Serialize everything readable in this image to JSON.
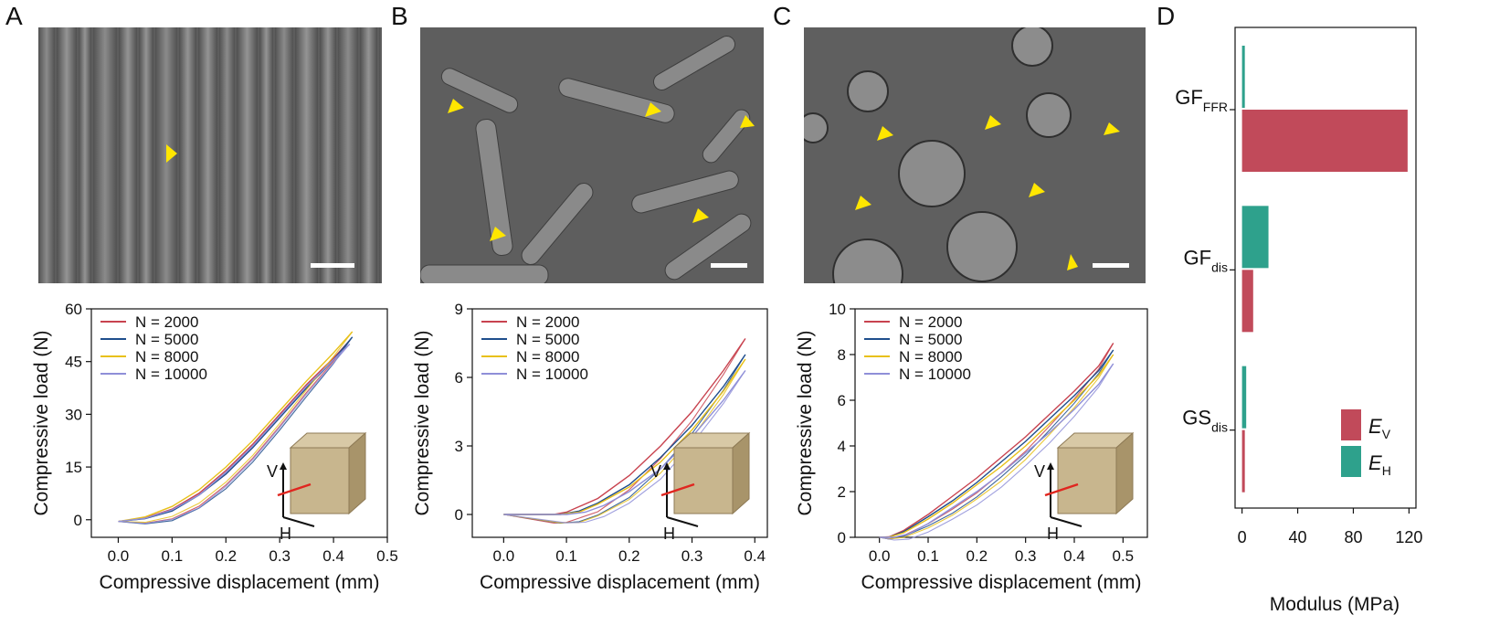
{
  "panels": {
    "a": {
      "letter": "A"
    },
    "b": {
      "letter": "B"
    },
    "c": {
      "letter": "C"
    },
    "d": {
      "letter": "D"
    }
  },
  "inset_labels": {
    "v": "V",
    "h": "H"
  },
  "colors": {
    "n2000": "#c8434f",
    "n5000": "#1f4e8c",
    "n8000": "#e8c11a",
    "n10000": "#8f8fd8",
    "ev": "#c14a5a",
    "eh": "#2ea18c",
    "arrowhead": "#ffe600",
    "inset_arrow": "#e0261f"
  },
  "chart_data": [
    {
      "panel": "A",
      "type": "line",
      "xlabel": "Compressive displacement (mm)",
      "ylabel": "Compressive load (N)",
      "xlim": [
        -0.05,
        0.5
      ],
      "ylim": [
        -5,
        60
      ],
      "xticks": [
        "0.0",
        "0.1",
        "0.2",
        "0.3",
        "0.4",
        "0.5"
      ],
      "yticks": [
        "0",
        "15",
        "30",
        "45",
        "60"
      ],
      "legend": "top-left",
      "grid": false,
      "series": [
        {
          "name": "N = 2000",
          "color": "#c8434f",
          "x": [
            0,
            0.05,
            0.1,
            0.15,
            0.2,
            0.25,
            0.3,
            0.35,
            0.4,
            0.43
          ],
          "y": [
            -0.5,
            0.5,
            3,
            7.5,
            14,
            21.5,
            30,
            38.5,
            46,
            51
          ]
        },
        {
          "name": "N = 5000",
          "color": "#1f4e8c",
          "x": [
            0,
            0.05,
            0.1,
            0.15,
            0.2,
            0.25,
            0.3,
            0.35,
            0.4,
            0.435
          ],
          "y": [
            -0.5,
            0.3,
            2.5,
            7,
            13,
            20.5,
            29,
            37.5,
            45.5,
            52
          ]
        },
        {
          "name": "N = 8000",
          "color": "#e8c11a",
          "x": [
            0,
            0.05,
            0.1,
            0.15,
            0.2,
            0.25,
            0.3,
            0.35,
            0.4,
            0.435
          ],
          "y": [
            -0.5,
            0.8,
            3.8,
            8.5,
            15,
            22.5,
            31,
            39.5,
            47.5,
            53.5
          ]
        },
        {
          "name": "N = 10000",
          "color": "#8f8fd8",
          "x": [
            0,
            0.05,
            0.1,
            0.15,
            0.2,
            0.25,
            0.3,
            0.35,
            0.4,
            0.43
          ],
          "y": [
            -0.5,
            0.4,
            2.8,
            7,
            13.5,
            21,
            29.5,
            38,
            45.5,
            50
          ]
        }
      ]
    },
    {
      "panel": "B",
      "type": "line",
      "xlabel": "Compressive displacement (mm)",
      "ylabel": "Compressive load (N)",
      "xlim": [
        -0.05,
        0.42
      ],
      "ylim": [
        -1,
        9
      ],
      "xticks": [
        "0.0",
        "0.1",
        "0.2",
        "0.3",
        "0.4"
      ],
      "yticks": [
        "0",
        "3",
        "6",
        "9"
      ],
      "legend": "top-left",
      "grid": false,
      "series": [
        {
          "name": "N = 2000",
          "color": "#c8434f",
          "x": [
            0,
            0.08,
            0.1,
            0.15,
            0.2,
            0.25,
            0.3,
            0.35,
            0.385
          ],
          "y": [
            0,
            0,
            0.1,
            0.7,
            1.7,
            3.0,
            4.5,
            6.3,
            7.7
          ]
        },
        {
          "name": "N = 5000",
          "color": "#1f4e8c",
          "x": [
            0,
            0.09,
            0.12,
            0.15,
            0.2,
            0.25,
            0.3,
            0.35,
            0.385
          ],
          "y": [
            0,
            0,
            0.15,
            0.5,
            1.3,
            2.5,
            3.9,
            5.6,
            7.0
          ]
        },
        {
          "name": "N = 8000",
          "color": "#e8c11a",
          "x": [
            0,
            0.09,
            0.12,
            0.15,
            0.2,
            0.25,
            0.3,
            0.35,
            0.385
          ],
          "y": [
            0,
            0,
            0.1,
            0.45,
            1.2,
            2.3,
            3.7,
            5.4,
            6.8
          ]
        },
        {
          "name": "N = 10000",
          "color": "#8f8fd8",
          "x": [
            0,
            0.1,
            0.13,
            0.16,
            0.2,
            0.25,
            0.3,
            0.35,
            0.385
          ],
          "y": [
            0,
            0,
            0.1,
            0.4,
            1.0,
            2.0,
            3.4,
            5.0,
            6.3
          ]
        }
      ]
    },
    {
      "panel": "C",
      "type": "line",
      "xlabel": "Compressive displacement (mm)",
      "ylabel": "Compressive load (N)",
      "xlim": [
        -0.05,
        0.55
      ],
      "ylim": [
        0,
        10
      ],
      "xticks": [
        "0.0",
        "0.1",
        "0.2",
        "0.3",
        "0.4",
        "0.5"
      ],
      "yticks": [
        "0",
        "2",
        "4",
        "6",
        "8",
        "10"
      ],
      "legend": "top-left",
      "grid": false,
      "series": [
        {
          "name": "N = 2000",
          "color": "#c8434f",
          "x": [
            0,
            0.02,
            0.05,
            0.1,
            0.15,
            0.2,
            0.25,
            0.3,
            0.35,
            0.4,
            0.45,
            0.48
          ],
          "y": [
            0,
            0.02,
            0.3,
            1.0,
            1.8,
            2.6,
            3.5,
            4.4,
            5.4,
            6.4,
            7.5,
            8.5
          ]
        },
        {
          "name": "N = 5000",
          "color": "#1f4e8c",
          "x": [
            0,
            0.02,
            0.05,
            0.1,
            0.15,
            0.2,
            0.25,
            0.3,
            0.35,
            0.4,
            0.45,
            0.48
          ],
          "y": [
            0,
            0.01,
            0.25,
            0.9,
            1.6,
            2.4,
            3.3,
            4.2,
            5.2,
            6.2,
            7.3,
            8.2
          ]
        },
        {
          "name": "N = 8000",
          "color": "#e8c11a",
          "x": [
            0,
            0.02,
            0.05,
            0.1,
            0.15,
            0.2,
            0.25,
            0.3,
            0.35,
            0.4,
            0.45,
            0.48
          ],
          "y": [
            0,
            0.01,
            0.2,
            0.8,
            1.5,
            2.3,
            3.1,
            4.0,
            5.0,
            6.0,
            7.1,
            8.0
          ]
        },
        {
          "name": "N = 10000",
          "color": "#8f8fd8",
          "x": [
            0,
            0.03,
            0.06,
            0.1,
            0.15,
            0.2,
            0.25,
            0.3,
            0.35,
            0.4,
            0.45,
            0.48
          ],
          "y": [
            0,
            0.0,
            0.15,
            0.6,
            1.3,
            2.0,
            2.8,
            3.7,
            4.6,
            5.6,
            6.7,
            7.6
          ]
        }
      ]
    },
    {
      "panel": "D",
      "type": "bar",
      "orientation": "horizontal",
      "xlabel": "Modulus (MPa)",
      "xlim": [
        -5,
        125
      ],
      "xticks": [
        "0",
        "40",
        "80",
        "120"
      ],
      "categories": [
        "GF_FFR",
        "GF_dis",
        "GS_dis"
      ],
      "category_labels": [
        {
          "main": "GF",
          "sub": "FFR"
        },
        {
          "main": "GF",
          "sub": "dis"
        },
        {
          "main": "GS",
          "sub": "dis"
        }
      ],
      "legend": "bottom-right",
      "grid": false,
      "series": [
        {
          "name": "E",
          "sub": "V",
          "color": "#c14a5a",
          "values": [
            119,
            8,
            2
          ]
        },
        {
          "name": "E",
          "sub": "H",
          "color": "#2ea18c",
          "values": [
            2,
            19,
            3
          ]
        }
      ]
    }
  ]
}
